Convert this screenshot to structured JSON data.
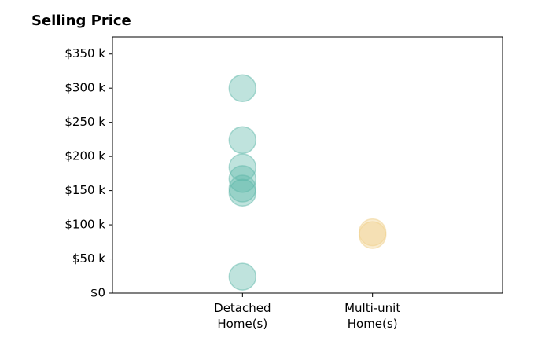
{
  "chart_data": {
    "type": "strip",
    "title": "Selling Price",
    "categories": [
      "Detached\nHome(s)",
      "Multi-unit\nHome(s)"
    ],
    "values": [
      [
        300000,
        224000,
        184000,
        167000,
        153000,
        147000,
        24000
      ],
      [
        89000,
        85000
      ]
    ],
    "colors": [
      "#5fb8aa",
      "#efd08a"
    ],
    "ylim": [
      0,
      375000
    ],
    "yticks": [
      {
        "value": 0,
        "label": "$0"
      },
      {
        "value": 50000,
        "label": "$50 k"
      },
      {
        "value": 100000,
        "label": "$100 k"
      },
      {
        "value": 150000,
        "label": "$150 k"
      },
      {
        "value": 200000,
        "label": "$200 k"
      },
      {
        "value": 250000,
        "label": "$250 k"
      },
      {
        "value": 300000,
        "label": "$300 k"
      },
      {
        "value": 350000,
        "label": "$350 k"
      }
    ]
  }
}
